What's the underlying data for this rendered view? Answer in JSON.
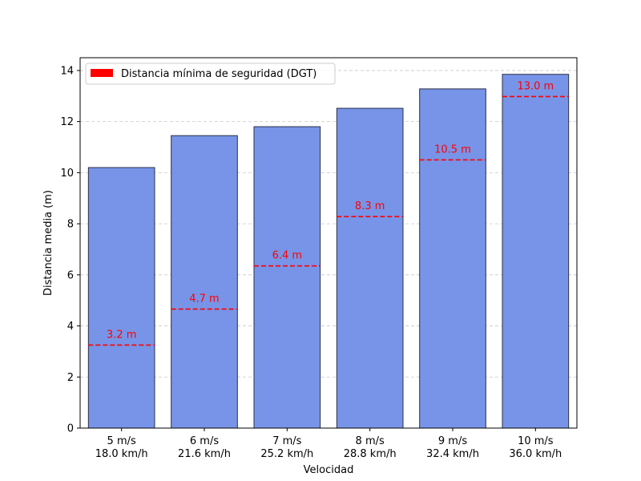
{
  "chart_data": {
    "type": "bar",
    "categories": [
      [
        "5 m/s",
        "18.0 km/h"
      ],
      [
        "6 m/s",
        "21.6 km/h"
      ],
      [
        "7 m/s",
        "25.2 km/h"
      ],
      [
        "8 m/s",
        "28.8 km/h"
      ],
      [
        "9 m/s",
        "32.4 km/h"
      ],
      [
        "10 m/s",
        "36.0 km/h"
      ]
    ],
    "values": [
      10.2,
      11.45,
      11.8,
      12.52,
      13.28,
      13.85
    ],
    "min_distances": [
      3.25,
      4.66,
      6.35,
      8.28,
      10.5,
      12.98
    ],
    "min_distance_labels": [
      "3.2 m",
      "4.7 m",
      "6.4 m",
      "8.3 m",
      "10.5 m",
      "13.0 m"
    ],
    "xlabel": "Velocidad",
    "ylabel": "Distancia media (m)",
    "ylim": [
      0,
      14.5
    ],
    "yticks": [
      0,
      2,
      4,
      6,
      8,
      10,
      12,
      14
    ],
    "grid": "y-dashed",
    "legend": {
      "placement": "top-left",
      "label": "Distancia mínima de seguridad (DGT)",
      "color": "#ff0000"
    },
    "bar_color": "#7794e8",
    "bar_edge_color": "#2b2f4a",
    "line_color": "#ff0000"
  }
}
